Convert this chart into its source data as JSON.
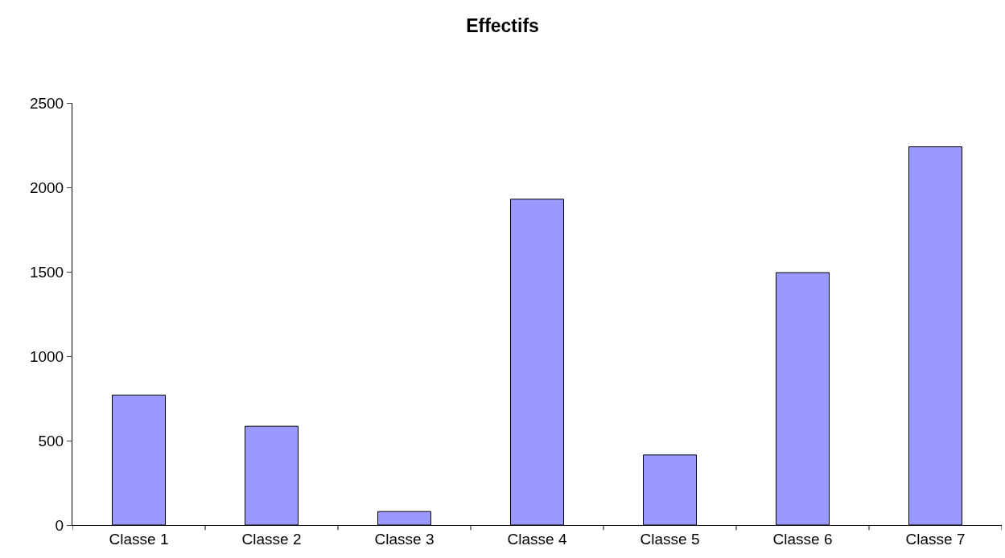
{
  "chart_data": {
    "type": "bar",
    "title": "Effectifs",
    "categories": [
      "Classe 1",
      "Classe 2",
      "Classe 3",
      "Classe 4",
      "Classe 5",
      "Classe 6",
      "Classe 7"
    ],
    "values": [
      770,
      585,
      80,
      1930,
      415,
      1495,
      2240
    ],
    "color": "#9999ff",
    "ylim": [
      0,
      2500
    ],
    "yticks": [
      0,
      500,
      1000,
      1500,
      2000,
      2500
    ]
  }
}
